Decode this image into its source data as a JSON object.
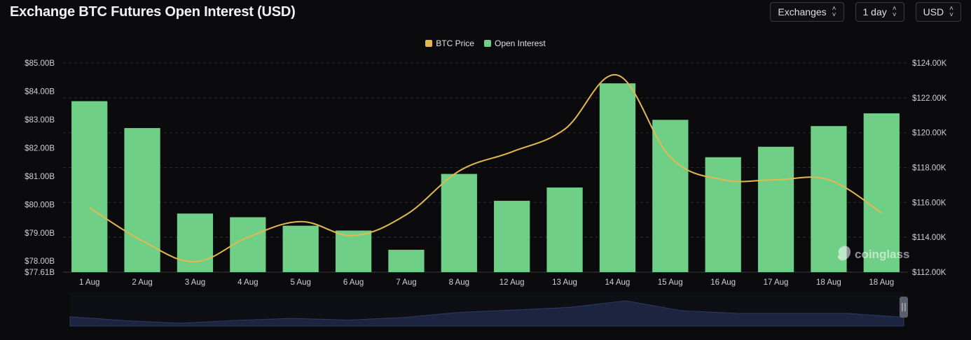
{
  "title": "Exchange BTC Futures Open Interest (USD)",
  "controls": {
    "exchanges": "Exchanges",
    "interval": "1 day",
    "currency": "USD"
  },
  "watermark": "coinglass",
  "colors": {
    "bar": "#6fcf86",
    "line": "#e3b94f",
    "grid": "#2a2a30",
    "background": "#0b0b0e"
  },
  "chart_data": {
    "type": "bar",
    "categories": [
      "1 Aug",
      "2 Aug",
      "3 Aug",
      "4 Aug",
      "5 Aug",
      "6 Aug",
      "7 Aug",
      "8 Aug",
      "12 Aug",
      "13 Aug",
      "14 Aug",
      "15 Aug",
      "16 Aug",
      "17 Aug",
      "18 Aug",
      "18 Aug"
    ],
    "series": [
      {
        "name": "Open Interest",
        "type": "bar",
        "axis": "left",
        "values": [
          83.65,
          82.7,
          79.68,
          79.55,
          79.25,
          79.08,
          78.4,
          81.08,
          80.13,
          80.6,
          84.28,
          82.99,
          81.67,
          82.04,
          82.77,
          83.22
        ]
      },
      {
        "name": "BTC Price",
        "type": "line",
        "axis": "right",
        "values": [
          115700,
          113800,
          112600,
          114000,
          114900,
          114100,
          115300,
          117800,
          118900,
          120200,
          123300,
          118600,
          117300,
          117300,
          117300,
          115400
        ]
      }
    ],
    "left_axis": {
      "ticks": [
        "$77.61B",
        "$78.00B",
        "$79.00B",
        "$80.00B",
        "$81.00B",
        "$82.00B",
        "$83.00B",
        "$84.00B",
        "$85.00B"
      ],
      "tick_values": [
        77.61,
        78,
        79,
        80,
        81,
        82,
        83,
        84,
        85
      ],
      "range": [
        77.61,
        85
      ]
    },
    "right_axis": {
      "ticks": [
        "$112.00K",
        "$114.00K",
        "$116.00K",
        "$118.00K",
        "$120.00K",
        "$122.00K",
        "$124.00K"
      ],
      "tick_values": [
        112000,
        114000,
        116000,
        118000,
        120000,
        122000,
        124000
      ],
      "range": [
        112000,
        124000
      ]
    },
    "legend": {
      "position": "top-center",
      "items": [
        {
          "label": "BTC Price",
          "color": "#e3b94f"
        },
        {
          "label": "Open Interest",
          "color": "#6fcf86"
        }
      ]
    },
    "grid": true,
    "overview_range_slider": true
  }
}
